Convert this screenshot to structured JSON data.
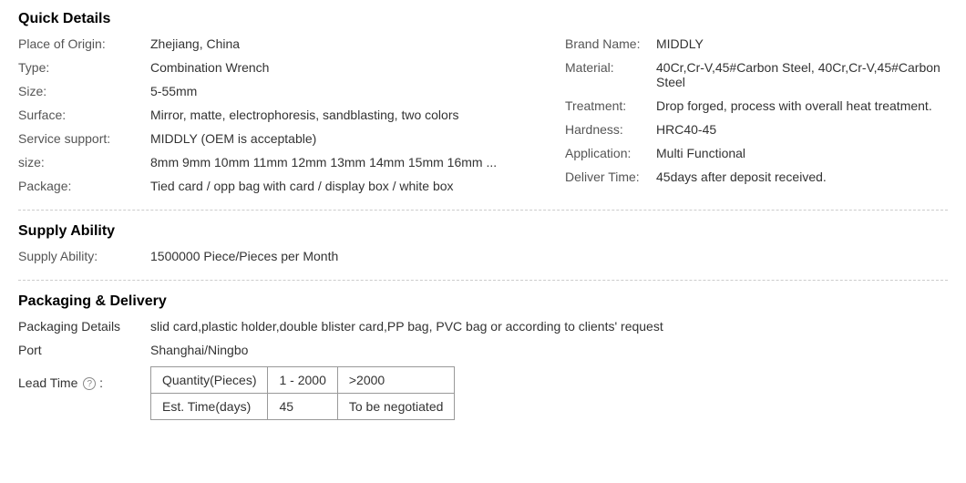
{
  "quick_details": {
    "title": "Quick Details",
    "left": [
      {
        "label": "Place of Origin:",
        "value": "Zhejiang, China"
      },
      {
        "label": "Type:",
        "value": "Combination Wrench"
      },
      {
        "label": "Size:",
        "value": "5-55mm"
      },
      {
        "label": "Surface:",
        "value": "Mirror, matte, electrophoresis, sandblasting, two colors"
      },
      {
        "label": "Service support:",
        "value": "MIDDLY (OEM is acceptable)"
      },
      {
        "label": "size:",
        "value": "8mm 9mm 10mm 11mm 12mm 13mm 14mm 15mm 16mm ..."
      },
      {
        "label": "Package:",
        "value": "Tied card / opp bag with card / display box / white box"
      }
    ],
    "right": [
      {
        "label": "Brand Name:",
        "value": "MIDDLY"
      },
      {
        "label": "Material:",
        "value": "40Cr,Cr-V,45#Carbon Steel, 40Cr,Cr-V,45#Carbon Steel"
      },
      {
        "label": "Treatment:",
        "value": "Drop forged, process with overall heat treatment."
      },
      {
        "label": "Hardness:",
        "value": "HRC40-45"
      },
      {
        "label": "Application:",
        "value": "Multi Functional"
      },
      {
        "label": "Deliver Time:",
        "value": "45days after deposit received."
      }
    ]
  },
  "supply_ability": {
    "title": "Supply Ability",
    "label": "Supply Ability:",
    "value": "1500000 Piece/Pieces per Month"
  },
  "packaging_delivery": {
    "title": "Packaging & Delivery",
    "packaging_label": "Packaging Details",
    "packaging_value": "slid card,plastic holder,double blister card,PP bag, PVC bag or according to clients' request",
    "port_label": "Port",
    "port_value": "Shanghai/Ningbo",
    "lead_label": "Lead Time",
    "lead_table": {
      "headers": [
        "Quantity(Pieces)",
        "1 - 2000",
        ">2000"
      ],
      "row": [
        "Est. Time(days)",
        "45",
        "To be negotiated"
      ]
    }
  }
}
